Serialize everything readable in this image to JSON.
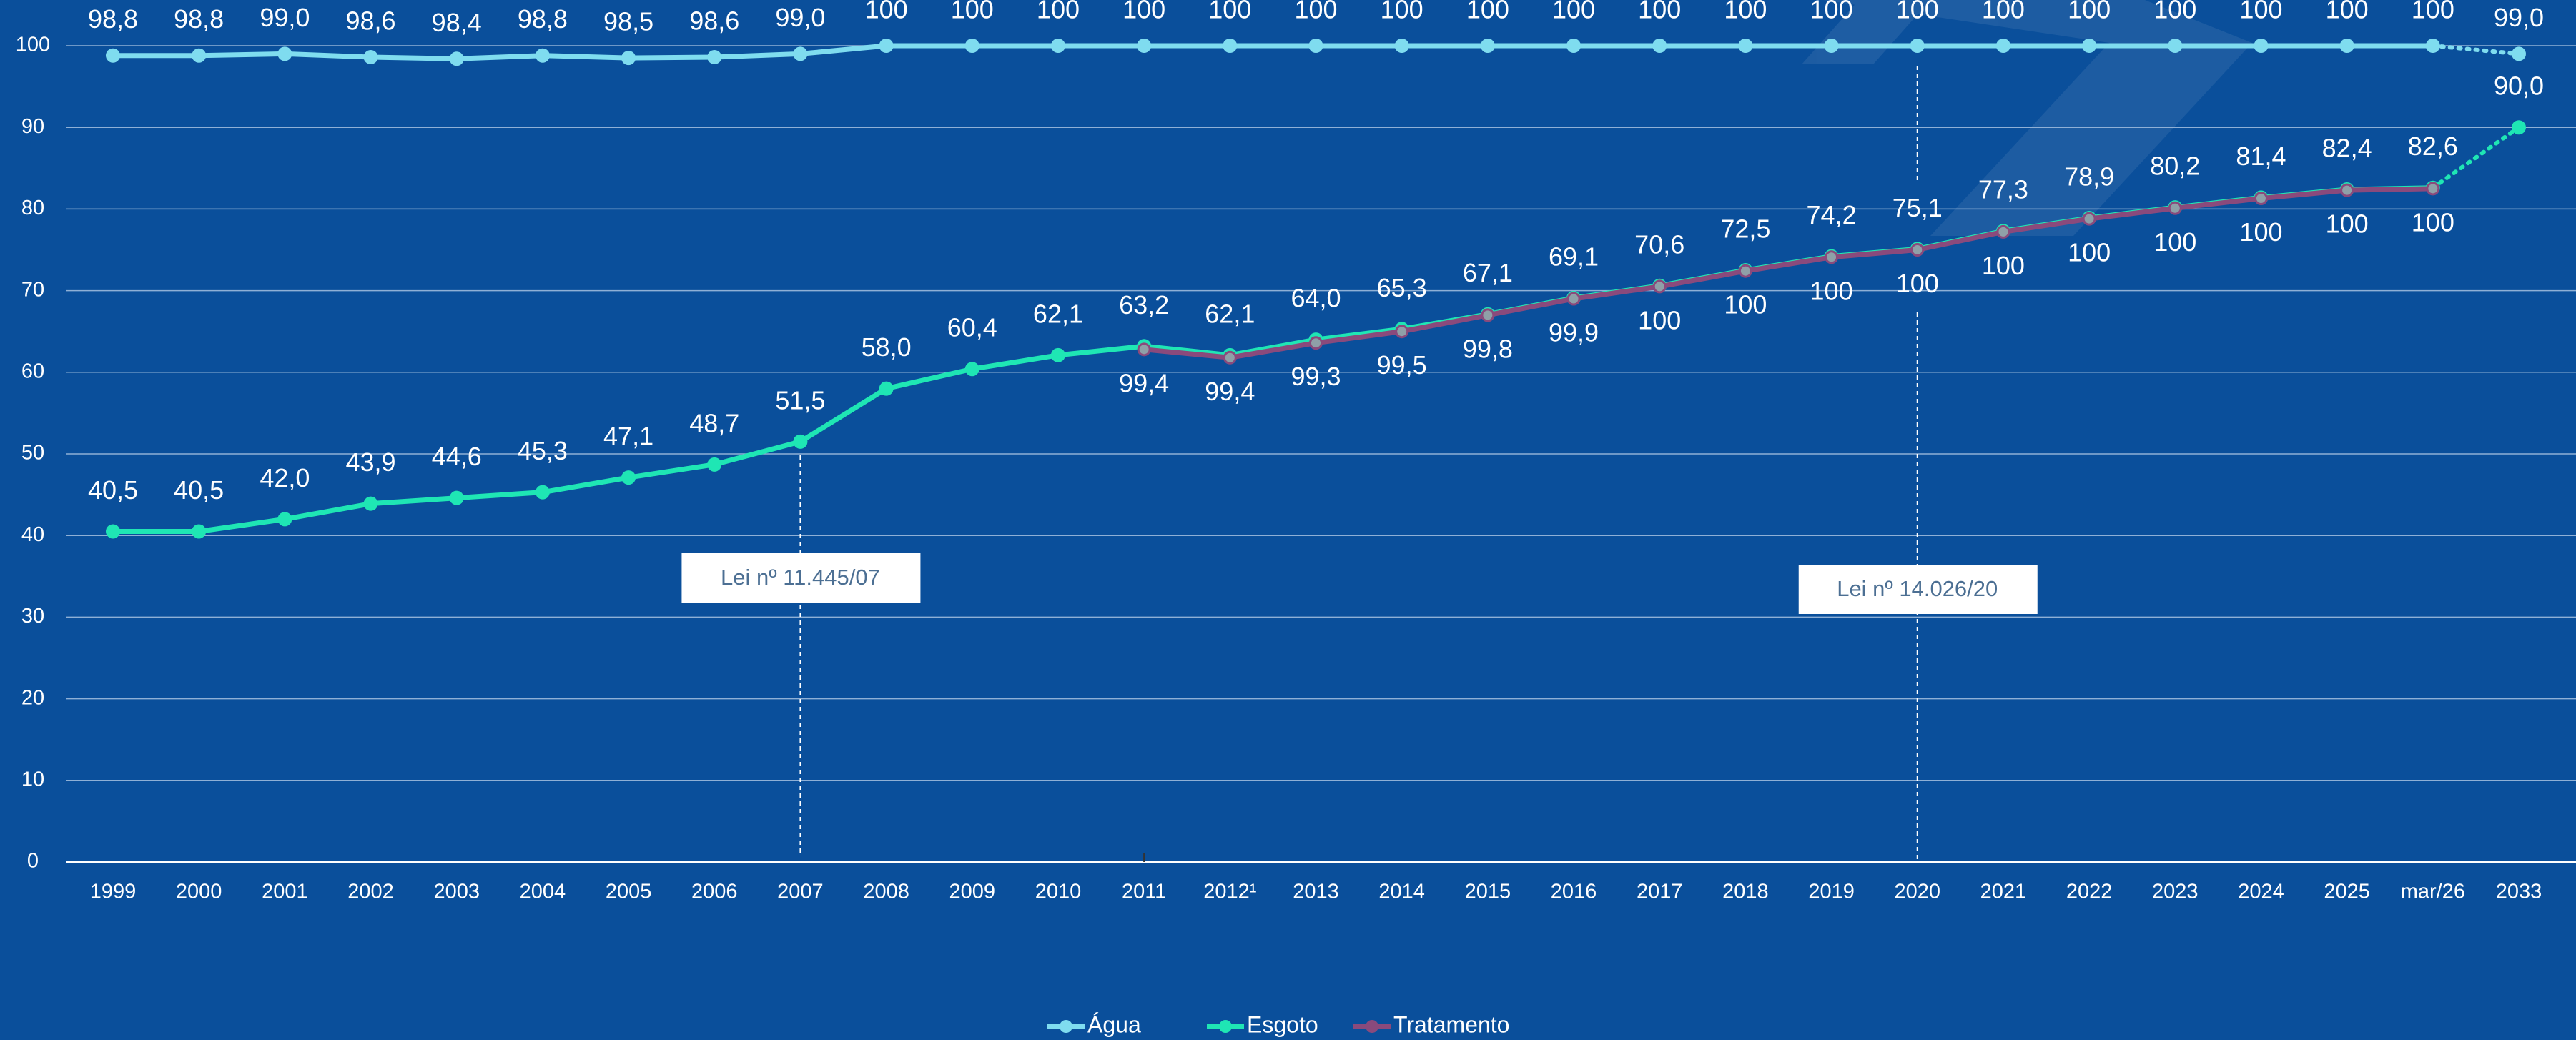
{
  "chart_data": {
    "type": "line",
    "categories": [
      "1999",
      "2000",
      "2001",
      "2002",
      "2003",
      "2004",
      "2005",
      "2006",
      "2007",
      "2008",
      "2009",
      "2010",
      "2011",
      "2012¹",
      "2013",
      "2014",
      "2015",
      "2016",
      "2017",
      "2018",
      "2019",
      "2020",
      "2021",
      "2022",
      "2023",
      "2024",
      "2025",
      "mar/26",
      "2033"
    ],
    "ylim": [
      0,
      100
    ],
    "yticks": [
      0,
      10,
      20,
      30,
      40,
      50,
      60,
      70,
      80,
      90,
      100
    ],
    "grid": true,
    "legend": "bottom",
    "series": [
      {
        "name": "Água",
        "color": "#7fdcef",
        "projected_last": true,
        "values": [
          98.8,
          98.8,
          99.0,
          98.6,
          98.4,
          98.8,
          98.5,
          98.6,
          99.0,
          100,
          100,
          100,
          100,
          100,
          100,
          100,
          100,
          100,
          100,
          100,
          100,
          100,
          100,
          100,
          100,
          100,
          100,
          100,
          99.0
        ],
        "value_labels": [
          "98,8",
          "98,8",
          "99,0",
          "98,6",
          "98,4",
          "98,8",
          "98,5",
          "98,6",
          "99,0",
          "100",
          "100",
          "100",
          "100",
          "100",
          "100",
          "100",
          "100",
          "100",
          "100",
          "100",
          "100",
          "100",
          "100",
          "100",
          "100",
          "100",
          "100",
          "100",
          "99,0"
        ]
      },
      {
        "name": "Esgoto",
        "color": "#1fe6b4",
        "projected_last": true,
        "values": [
          40.5,
          40.5,
          42.0,
          43.9,
          44.6,
          45.3,
          47.1,
          48.7,
          51.5,
          58.0,
          60.4,
          62.1,
          63.2,
          62.1,
          64.0,
          65.3,
          67.1,
          69.1,
          70.6,
          72.5,
          74.2,
          75.1,
          77.3,
          78.9,
          80.2,
          81.4,
          82.4,
          82.6,
          90.0
        ],
        "value_labels": [
          "40,5",
          "40,5",
          "42,0",
          "43,9",
          "44,6",
          "45,3",
          "47,1",
          "48,7",
          "51,5",
          "58,0",
          "60,4",
          "62,1",
          "63,2",
          "62,1",
          "64,0",
          "65,3",
          "67,1",
          "69,1",
          "70,6",
          "72,5",
          "74,2",
          "75,1",
          "77,3",
          "78,9",
          "80,2",
          "81,4",
          "82,4",
          "82,6",
          "90,0"
        ]
      },
      {
        "name": "Tratamento",
        "color": "#8a4a7c",
        "projected_last": false,
        "values": [
          null,
          null,
          null,
          null,
          null,
          null,
          null,
          null,
          null,
          null,
          null,
          null,
          62.8,
          61.8,
          63.6,
          65.0,
          67.0,
          69.0,
          70.5,
          72.4,
          74.1,
          75.0,
          77.2,
          78.8,
          80.1,
          81.3,
          82.3,
          82.5,
          null
        ],
        "treatment_labels": [
          null,
          null,
          null,
          null,
          null,
          null,
          null,
          null,
          null,
          null,
          null,
          null,
          "99,4",
          "99,4",
          "99,3",
          "99,5",
          "99,8",
          "99,9",
          "100",
          "100",
          "100",
          "100",
          "100",
          "100",
          "100",
          "100",
          "100",
          "100",
          null
        ]
      }
    ],
    "annotations": [
      {
        "text": "Lei nº 11.445/07",
        "category": "2007"
      },
      {
        "text": "Lei nº 14.026/20",
        "category": "2020"
      }
    ]
  }
}
